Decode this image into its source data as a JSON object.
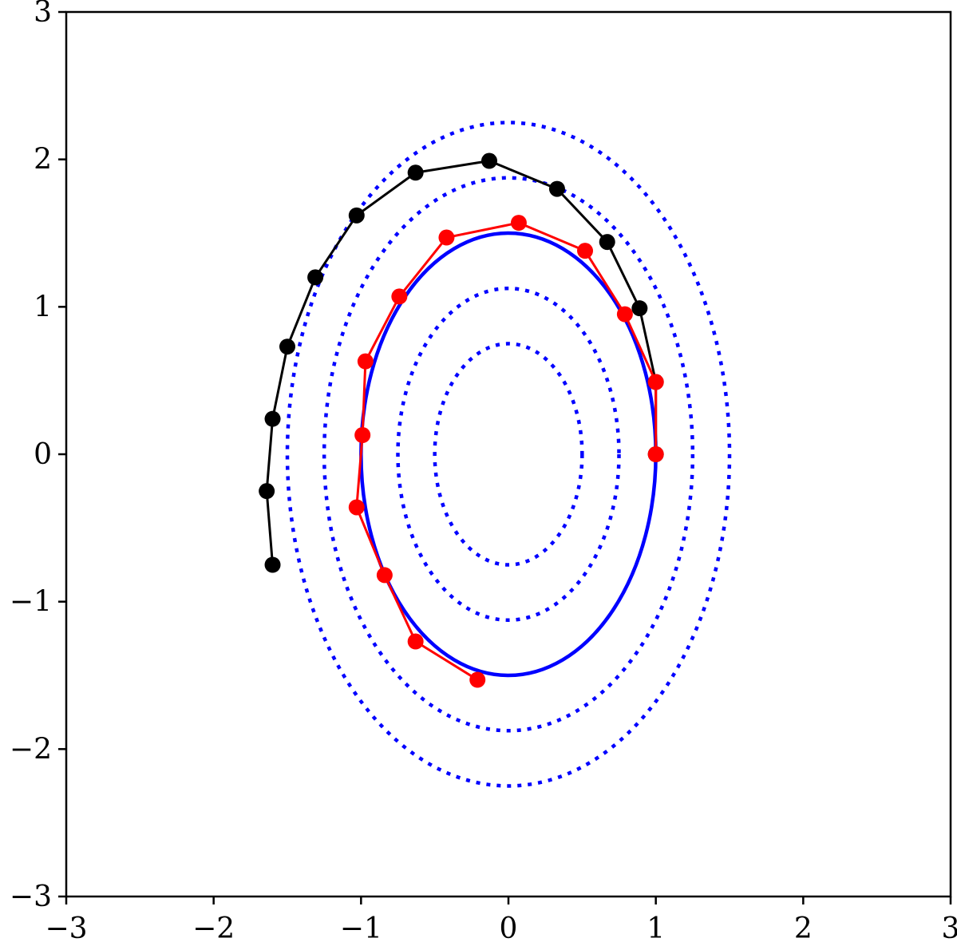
{
  "chart_data": {
    "type": "scatter",
    "title": "",
    "xlabel": "",
    "ylabel": "",
    "xlim": [
      -3,
      3
    ],
    "ylim": [
      -3,
      3
    ],
    "grid": false,
    "x_ticks": [
      -3,
      -2,
      -1,
      0,
      1,
      2,
      3
    ],
    "y_ticks": [
      -3,
      -2,
      -1,
      0,
      1,
      2,
      3
    ],
    "x_tick_labels": [
      "−3",
      "−2",
      "−1",
      "0",
      "1",
      "2",
      "3"
    ],
    "y_tick_labels": [
      "−3",
      "−2",
      "−1",
      "0",
      "1",
      "2",
      "3"
    ],
    "ellipses": [
      {
        "style": "dotted",
        "color": "#0000ff",
        "rx": 0.5,
        "ry": 0.75
      },
      {
        "style": "dotted",
        "color": "#0000ff",
        "rx": 0.75,
        "ry": 1.125
      },
      {
        "style": "solid",
        "color": "#0000ff",
        "rx": 1.0,
        "ry": 1.5
      },
      {
        "style": "dotted",
        "color": "#0000ff",
        "rx": 1.25,
        "ry": 1.875
      },
      {
        "style": "dotted",
        "color": "#0000ff",
        "rx": 1.5,
        "ry": 2.25
      }
    ],
    "series": [
      {
        "color": "#000000",
        "points": [
          [
            -1.6,
            -0.75
          ],
          [
            -1.64,
            -0.25
          ],
          [
            -1.6,
            0.24
          ],
          [
            -1.5,
            0.73
          ],
          [
            -1.31,
            1.2
          ],
          [
            -1.03,
            1.62
          ],
          [
            -0.63,
            1.91
          ],
          [
            -0.13,
            1.99
          ],
          [
            0.33,
            1.8
          ],
          [
            0.67,
            1.44
          ],
          [
            0.89,
            0.99
          ],
          [
            1.0,
            0.49
          ],
          [
            1.0,
            0.0
          ]
        ]
      },
      {
        "color": "#ff0000",
        "points": [
          [
            1.0,
            0.0
          ],
          [
            1.0,
            0.49
          ],
          [
            0.79,
            0.95
          ],
          [
            0.52,
            1.38
          ],
          [
            0.07,
            1.57
          ],
          [
            -0.42,
            1.47
          ],
          [
            -0.74,
            1.07
          ],
          [
            -0.97,
            0.63
          ],
          [
            -0.99,
            0.13
          ],
          [
            -1.03,
            -0.36
          ],
          [
            -0.84,
            -0.82
          ],
          [
            -0.63,
            -1.27
          ],
          [
            -0.21,
            -1.53
          ]
        ]
      }
    ]
  }
}
